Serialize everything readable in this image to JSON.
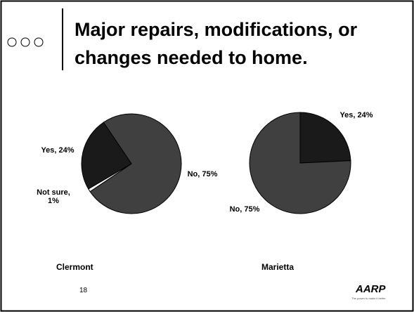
{
  "slide": {
    "title": "Major repairs, modifications, or changes needed to home.",
    "page_number": "18",
    "logo": "AARP",
    "tagline": "The power to make it better."
  },
  "chart_data": [
    {
      "type": "pie",
      "title": "Clermont",
      "categories": [
        "No",
        "Not sure",
        "Yes"
      ],
      "values": [
        75,
        1,
        24
      ],
      "value_labels": [
        "No, 75%",
        "Not sure, 1%",
        "Yes, 24%"
      ],
      "colors": [
        "#404040",
        "#ffffff",
        "#1a1a1a"
      ]
    },
    {
      "type": "pie",
      "title": "Marietta",
      "categories": [
        "Yes",
        "No"
      ],
      "values": [
        24,
        75
      ],
      "value_labels": [
        "Yes, 24%",
        "No, 75%"
      ],
      "colors": [
        "#1a1a1a",
        "#404040"
      ]
    }
  ]
}
